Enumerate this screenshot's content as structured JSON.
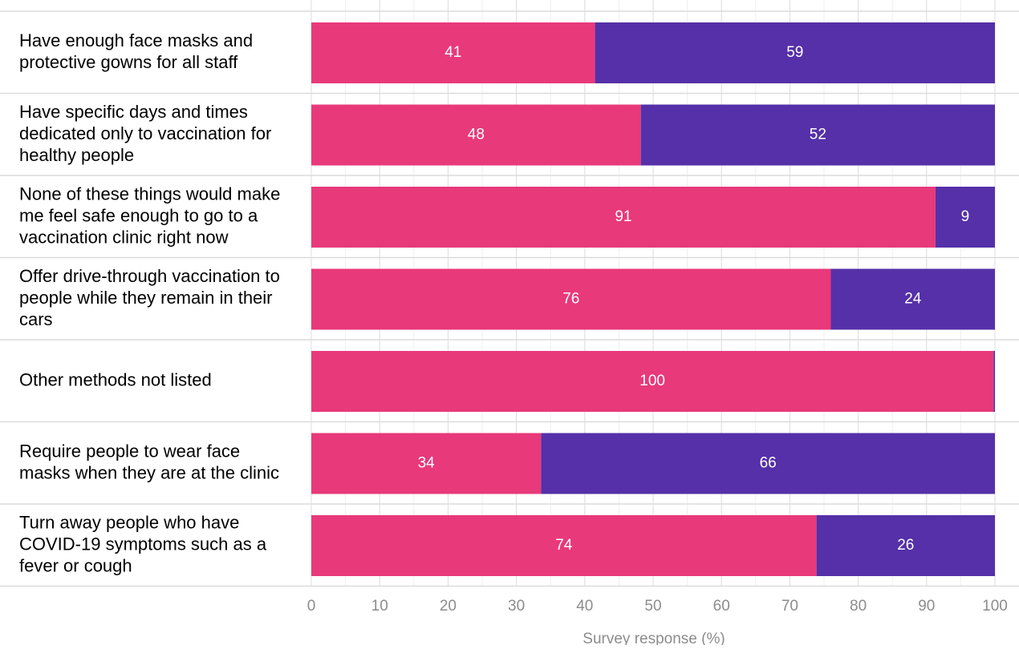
{
  "chart_data": {
    "type": "bar",
    "orientation": "horizontal",
    "stacked": true,
    "categories": [
      "Have enough face masks and protective gowns for all staff",
      "Have specific days and times dedicated only to vaccination for healthy people",
      "None of these things would make me feel safe enough to go to a vaccination clinic right now",
      "Offer drive-through vaccination to people while they remain in their cars",
      "Other methods not listed",
      "Require people to wear face masks when they are at the clinic",
      "Turn away people who have COVID-19 symptoms such as a fever or cough"
    ],
    "category_label_lines": [
      [
        "Have enough face masks and",
        "protective gowns for all staff"
      ],
      [
        "Have specific days and times",
        "dedicated only to vaccination for",
        "healthy people"
      ],
      [
        "None of these things would make",
        "me feel safe enough to go to a",
        "vaccination clinic right now"
      ],
      [
        "Offer drive-through vaccination to",
        "people while they remain in their",
        "cars"
      ],
      [
        "Other methods not listed"
      ],
      [
        "Require people to wear face",
        "masks when they are at the clinic"
      ],
      [
        "Turn away people who have",
        "COVID-19 symptoms such as a",
        "fever or cough"
      ]
    ],
    "series": [
      {
        "values": [
          41.5,
          48.2,
          91.3,
          76.0,
          99.8,
          33.6,
          73.9
        ],
        "labels": [
          "41",
          "48",
          "91",
          "76",
          "100",
          "34",
          "74"
        ],
        "color": "#e8397a"
      },
      {
        "values": [
          58.5,
          51.8,
          8.7,
          24.0,
          0.2,
          66.4,
          26.1
        ],
        "labels": [
          "59",
          "52",
          "9",
          "24",
          "",
          "66",
          "26"
        ],
        "color": "#5530a8"
      }
    ],
    "xlabel": "Survey response (%)",
    "xlim": [
      0,
      100
    ],
    "xticks": [
      "0",
      "10",
      "20",
      "30",
      "40",
      "50",
      "60",
      "70",
      "80",
      "90",
      "100"
    ],
    "grid": true,
    "legend": "none"
  },
  "colors": {
    "grid_major": "#dcdcdc",
    "grid_minor": "#efefef",
    "axis_text": "#8c8c8c"
  }
}
